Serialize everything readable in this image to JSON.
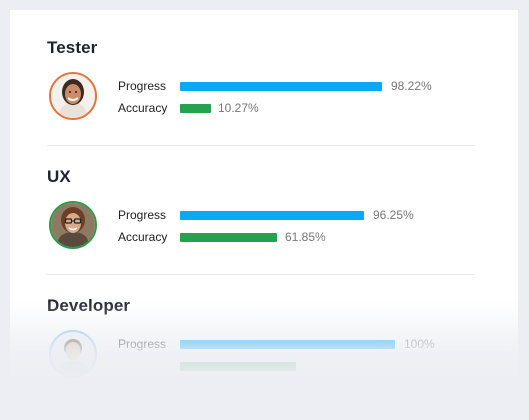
{
  "colors": {
    "progress": "#0aa9f5",
    "accuracy": "#24a24f",
    "tester_ring": "#e8743b",
    "ux_ring": "#2e9a4a",
    "developer_ring": "#8ec9ef"
  },
  "roles": [
    {
      "title": "Tester",
      "avatar_icon": "avatar-female-smiling",
      "progress_label": "Progress",
      "progress_value": "98.22%",
      "progress_fraction": 0.9822,
      "accuracy_label": "Accuracy",
      "accuracy_value": "10.27%",
      "accuracy_fraction": 0.1027
    },
    {
      "title": "UX",
      "avatar_icon": "avatar-female-glasses",
      "progress_label": "Progress",
      "progress_value": "96.25%",
      "progress_fraction": 0.9625,
      "accuracy_label": "Accuracy",
      "accuracy_value": "61.85%",
      "accuracy_fraction": 0.6185
    },
    {
      "title": "Developer",
      "avatar_icon": "avatar-male",
      "progress_label": "Progress",
      "progress_value": "100%",
      "progress_fraction": 1.0
    }
  ]
}
